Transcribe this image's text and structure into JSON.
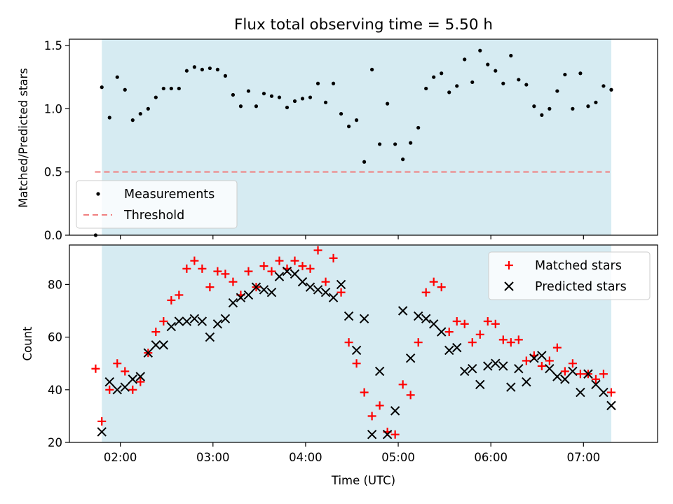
{
  "title": "Flux total observing time = 5.50 h",
  "colors": {
    "shade": "#add8e6",
    "matched": "#ff0000",
    "predicted": "#000000",
    "threshold": "#f08080",
    "measurement": "#000000"
  },
  "chart_data": [
    {
      "type": "scatter",
      "ylabel": "Matched/Predicted stars",
      "ylim": [
        0.0,
        1.55
      ],
      "yticks": [
        "0.0",
        "0.5",
        "1.0",
        "1.5"
      ],
      "legend": {
        "position": "lower-left",
        "entries": [
          "Measurements",
          "Threshold"
        ]
      },
      "threshold": 0.5,
      "shaded_span": [
        "01:48",
        "07:18"
      ],
      "series": [
        {
          "name": "Measurements",
          "x": [
            "01:44",
            "01:48",
            "01:53",
            "01:58",
            "02:03",
            "02:08",
            "02:13",
            "02:18",
            "02:23",
            "02:28",
            "02:33",
            "02:38",
            "02:43",
            "02:48",
            "02:53",
            "02:58",
            "03:03",
            "03:08",
            "03:13",
            "03:18",
            "03:23",
            "03:28",
            "03:33",
            "03:38",
            "03:43",
            "03:48",
            "03:53",
            "03:58",
            "04:03",
            "04:08",
            "04:13",
            "04:18",
            "04:23",
            "04:28",
            "04:33",
            "04:38",
            "04:43",
            "04:48",
            "04:53",
            "04:58",
            "05:03",
            "05:08",
            "05:13",
            "05:18",
            "05:23",
            "05:28",
            "05:33",
            "05:38",
            "05:43",
            "05:48",
            "05:53",
            "05:58",
            "06:03",
            "06:08",
            "06:13",
            "06:18",
            "06:23",
            "06:28",
            "06:33",
            "06:38",
            "06:43",
            "06:48",
            "06:53",
            "06:58",
            "07:03",
            "07:08",
            "07:13",
            "07:18"
          ],
          "y": [
            0.0,
            1.17,
            0.93,
            1.25,
            1.15,
            0.91,
            0.96,
            1.0,
            1.09,
            1.16,
            1.16,
            1.16,
            1.3,
            1.33,
            1.31,
            1.32,
            1.31,
            1.26,
            1.11,
            1.02,
            1.14,
            1.02,
            1.12,
            1.1,
            1.09,
            1.01,
            1.06,
            1.08,
            1.09,
            1.2,
            1.05,
            1.2,
            0.96,
            0.86,
            0.91,
            0.58,
            1.31,
            0.72,
            1.04,
            0.72,
            0.6,
            0.73,
            0.85,
            1.16,
            1.25,
            1.28,
            1.13,
            1.18,
            1.39,
            1.21,
            1.46,
            1.35,
            1.3,
            1.2,
            1.42,
            1.23,
            1.19,
            1.02,
            0.95,
            1.0,
            1.14,
            1.27,
            1.0,
            1.28,
            1.02,
            1.05,
            1.18,
            1.15
          ]
        }
      ]
    },
    {
      "type": "scatter",
      "xlabel": "Time (UTC)",
      "ylabel": "Count",
      "ylim": [
        20,
        95
      ],
      "yticks": [
        "20",
        "40",
        "60",
        "80"
      ],
      "xticks": [
        "02:00",
        "03:00",
        "04:00",
        "05:00",
        "06:00",
        "07:00"
      ],
      "xlim": [
        "01:27",
        "07:48"
      ],
      "legend": {
        "position": "upper-right",
        "entries": [
          "Matched stars",
          "Predicted stars"
        ]
      },
      "shaded_span": [
        "01:48",
        "07:18"
      ],
      "series": [
        {
          "name": "Matched stars",
          "x": [
            "01:44",
            "01:48",
            "01:53",
            "01:58",
            "02:03",
            "02:08",
            "02:13",
            "02:18",
            "02:23",
            "02:28",
            "02:33",
            "02:38",
            "02:43",
            "02:48",
            "02:53",
            "02:58",
            "03:03",
            "03:08",
            "03:13",
            "03:18",
            "03:23",
            "03:28",
            "03:33",
            "03:38",
            "03:43",
            "03:48",
            "03:53",
            "03:58",
            "04:03",
            "04:08",
            "04:13",
            "04:18",
            "04:23",
            "04:28",
            "04:33",
            "04:38",
            "04:43",
            "04:48",
            "04:53",
            "04:58",
            "05:03",
            "05:08",
            "05:13",
            "05:18",
            "05:23",
            "05:28",
            "05:33",
            "05:38",
            "05:43",
            "05:48",
            "05:53",
            "05:58",
            "06:03",
            "06:08",
            "06:13",
            "06:18",
            "06:23",
            "06:28",
            "06:33",
            "06:38",
            "06:43",
            "06:48",
            "06:53",
            "06:58",
            "07:03",
            "07:08",
            "07:13",
            "07:18"
          ],
          "y": [
            48,
            28,
            40,
            50,
            47,
            40,
            43,
            54,
            62,
            66,
            74,
            76,
            86,
            89,
            86,
            79,
            85,
            84,
            81,
            76,
            85,
            79,
            87,
            85,
            89,
            86,
            89,
            87,
            86,
            93,
            81,
            90,
            77,
            58,
            50,
            39,
            30,
            34,
            24,
            23,
            42,
            38,
            58,
            77,
            81,
            79,
            62,
            66,
            65,
            58,
            61,
            66,
            65,
            59,
            58,
            59,
            51,
            53,
            49,
            51,
            56,
            47,
            50,
            46,
            46,
            44,
            46,
            39
          ]
        },
        {
          "name": "Predicted stars",
          "x": [
            "01:48",
            "01:53",
            "01:58",
            "02:03",
            "02:08",
            "02:13",
            "02:18",
            "02:23",
            "02:28",
            "02:33",
            "02:38",
            "02:43",
            "02:48",
            "02:53",
            "02:58",
            "03:03",
            "03:08",
            "03:13",
            "03:18",
            "03:23",
            "03:28",
            "03:33",
            "03:38",
            "03:43",
            "03:48",
            "03:53",
            "03:58",
            "04:03",
            "04:08",
            "04:13",
            "04:18",
            "04:23",
            "04:28",
            "04:33",
            "04:38",
            "04:43",
            "04:48",
            "04:53",
            "04:58",
            "05:03",
            "05:08",
            "05:13",
            "05:18",
            "05:23",
            "05:28",
            "05:33",
            "05:38",
            "05:43",
            "05:48",
            "05:53",
            "05:58",
            "06:03",
            "06:08",
            "06:13",
            "06:18",
            "06:23",
            "06:28",
            "06:33",
            "06:38",
            "06:43",
            "06:48",
            "06:53",
            "06:58",
            "07:03",
            "07:08",
            "07:13",
            "07:18"
          ],
          "y": [
            24,
            43,
            40,
            41,
            44,
            45,
            54,
            57,
            57,
            64,
            66,
            66,
            67,
            66,
            60,
            65,
            67,
            73,
            75,
            76,
            79,
            78,
            77,
            83,
            85,
            84,
            81,
            79,
            78,
            77,
            75,
            80,
            68,
            55,
            67,
            23,
            47,
            23,
            32,
            70,
            52,
            68,
            67,
            65,
            62,
            55,
            56,
            47,
            48,
            42,
            49,
            50,
            49,
            41,
            48,
            43,
            52,
            53,
            48,
            45,
            44,
            47,
            39,
            46,
            42,
            39,
            34
          ]
        }
      ]
    }
  ]
}
